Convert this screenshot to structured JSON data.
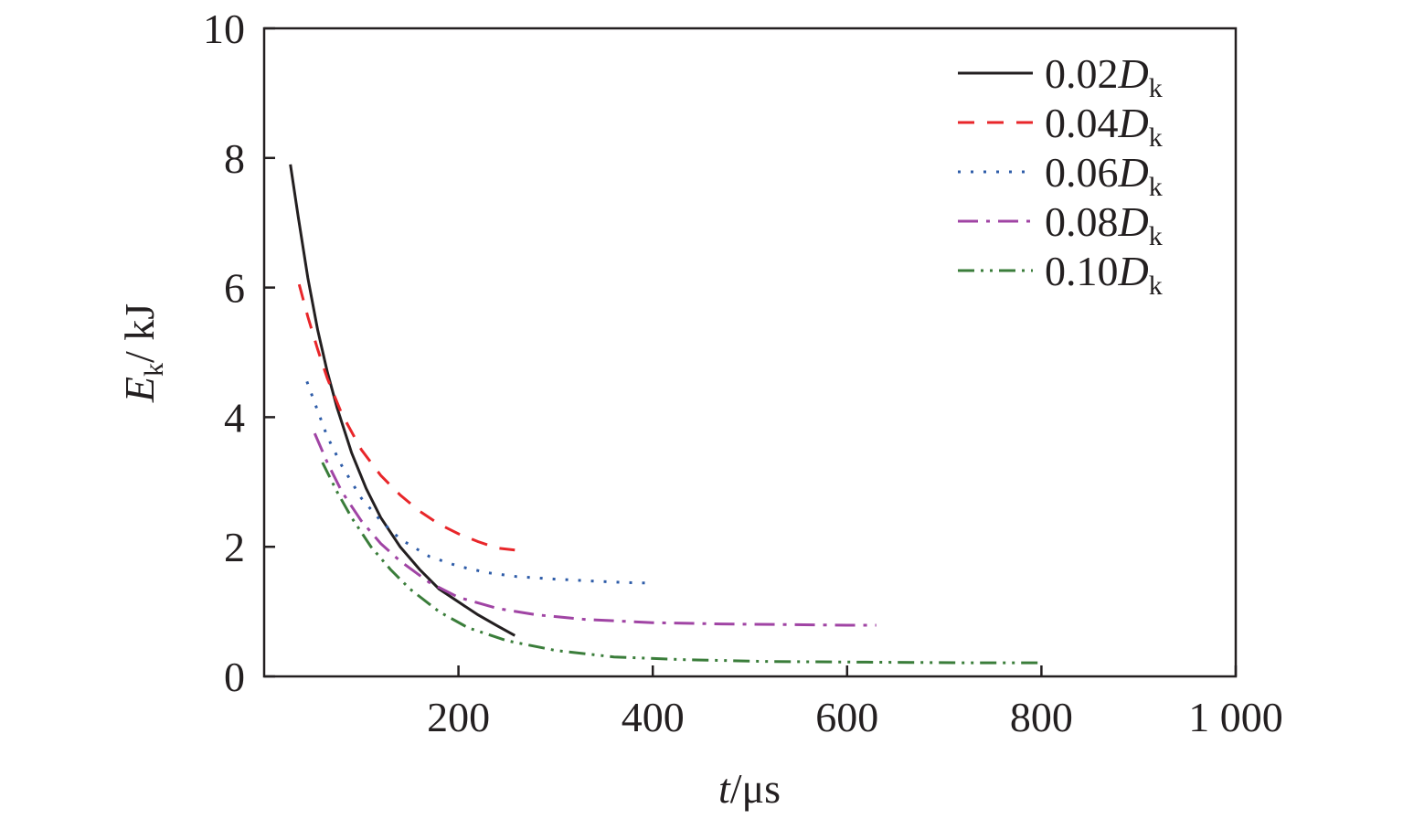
{
  "chart_data": {
    "type": "line",
    "title": "",
    "xlabel": {
      "var": "t",
      "unit": "/μs"
    },
    "ylabel": {
      "var": "E",
      "sub": "k",
      "unit": "/ kJ"
    },
    "xlim": [
      0,
      1000
    ],
    "ylim": [
      0,
      10
    ],
    "xticks": [
      {
        "value": 200,
        "label": "200"
      },
      {
        "value": 400,
        "label": "400"
      },
      {
        "value": 600,
        "label": "600"
      },
      {
        "value": 800,
        "label": "800"
      },
      {
        "value": 1000,
        "label": "1 000"
      }
    ],
    "yticks": [
      {
        "value": 0,
        "label": "0"
      },
      {
        "value": 2,
        "label": "2"
      },
      {
        "value": 4,
        "label": "4"
      },
      {
        "value": 6,
        "label": "6"
      },
      {
        "value": 8,
        "label": "8"
      },
      {
        "value": 10,
        "label": "10"
      }
    ],
    "grid": false,
    "legend_position": "top-right",
    "series": [
      {
        "name": "0.02D",
        "name_prefix": "0.02",
        "name_var": "D",
        "name_sub": "k",
        "color": "#231f20",
        "dash": "solid",
        "x": [
          27,
          35,
          45,
          55,
          65,
          75,
          90,
          105,
          120,
          140,
          160,
          180,
          200,
          220,
          240,
          258
        ],
        "y": [
          7.9,
          7.1,
          6.15,
          5.35,
          4.7,
          4.15,
          3.45,
          2.9,
          2.45,
          2.0,
          1.65,
          1.35,
          1.15,
          0.95,
          0.78,
          0.63
        ]
      },
      {
        "name": "0.04D",
        "name_prefix": "0.04",
        "name_var": "D",
        "name_sub": "k",
        "color": "#e8262a",
        "dash": "dash",
        "x": [
          36,
          45,
          55,
          65,
          80,
          100,
          120,
          140,
          160,
          180,
          200,
          220,
          240,
          258
        ],
        "y": [
          6.05,
          5.55,
          5.05,
          4.6,
          4.05,
          3.5,
          3.1,
          2.8,
          2.55,
          2.35,
          2.2,
          2.08,
          1.98,
          1.95
        ]
      },
      {
        "name": "0.06D",
        "name_prefix": "0.06",
        "name_var": "D",
        "name_sub": "k",
        "color": "#2e5ca8",
        "dash": "dot",
        "x": [
          44,
          55,
          65,
          80,
          100,
          120,
          140,
          170,
          200,
          230,
          260,
          300,
          340,
          370,
          395
        ],
        "y": [
          4.55,
          4.1,
          3.7,
          3.25,
          2.75,
          2.4,
          2.12,
          1.85,
          1.7,
          1.6,
          1.54,
          1.5,
          1.47,
          1.45,
          1.44
        ]
      },
      {
        "name": "0.08D",
        "name_prefix": "0.08",
        "name_var": "D",
        "name_sub": "k",
        "color": "#a044a4",
        "dash": "dashdot",
        "x": [
          52,
          65,
          80,
          100,
          120,
          140,
          170,
          200,
          240,
          280,
          330,
          400,
          470,
          540,
          600,
          630
        ],
        "y": [
          3.75,
          3.3,
          2.85,
          2.4,
          2.05,
          1.78,
          1.45,
          1.22,
          1.05,
          0.95,
          0.88,
          0.83,
          0.81,
          0.8,
          0.79,
          0.79
        ]
      },
      {
        "name": "0.10D",
        "name_prefix": "0.10",
        "name_var": "D",
        "name_sub": "k",
        "color": "#3a7d3a",
        "dash": "dashdotdot",
        "x": [
          60,
          75,
          90,
          110,
          130,
          150,
          180,
          210,
          250,
          300,
          360,
          430,
          520,
          620,
          720,
          800
        ],
        "y": [
          3.3,
          2.85,
          2.45,
          2.0,
          1.65,
          1.35,
          1.0,
          0.75,
          0.55,
          0.4,
          0.3,
          0.26,
          0.23,
          0.22,
          0.21,
          0.21
        ]
      }
    ]
  }
}
